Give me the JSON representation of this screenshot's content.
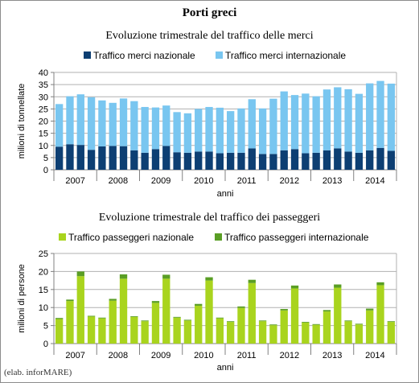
{
  "header": {
    "title": "Porti greci",
    "source": "(elab. inforMARE)"
  },
  "colors": {
    "merci_nazionale": "#0d3f73",
    "merci_internazionale": "#79c6f0",
    "passeggeri_nazionale": "#a9d41e",
    "passeggeri_internazionale": "#5a9e25",
    "grid": "#b0b0b0",
    "axis": "#808080"
  },
  "chart_data": [
    {
      "type": "bar",
      "stacked": true,
      "title": "Evoluzione trimestrale del traffico delle merci",
      "xlabel": "anni",
      "ylabel": "milioni di tonnellate",
      "ylim": [
        0,
        40
      ],
      "yticks": [
        0,
        5,
        10,
        15,
        20,
        25,
        30,
        35,
        40
      ],
      "grid": true,
      "legend": "top",
      "year_labels": [
        "2007",
        "2008",
        "2009",
        "2010",
        "2011",
        "2012",
        "2013",
        "2014"
      ],
      "categories": [
        "2007 Q1",
        "2007 Q2",
        "2007 Q3",
        "2007 Q4",
        "2008 Q1",
        "2008 Q2",
        "2008 Q3",
        "2008 Q4",
        "2009 Q1",
        "2009 Q2",
        "2009 Q3",
        "2009 Q4",
        "2010 Q1",
        "2010 Q2",
        "2010 Q3",
        "2010 Q4",
        "2011 Q1",
        "2011 Q2",
        "2011 Q3",
        "2011 Q4",
        "2012 Q1",
        "2012 Q2",
        "2012 Q3",
        "2012 Q4",
        "2013 Q1",
        "2013 Q2",
        "2013 Q3",
        "2013 Q4",
        "2014 Q1",
        "2014 Q2",
        "2014 Q3",
        "2014 Q4"
      ],
      "series": [
        {
          "name": "Traffico merci nazionale",
          "values": [
            9.5,
            10.5,
            10.2,
            8.2,
            9.6,
            9.8,
            9.7,
            8.0,
            7.0,
            8.5,
            9.8,
            7.2,
            7.0,
            7.5,
            7.5,
            6.8,
            7.0,
            7.0,
            8.8,
            6.5,
            6.5,
            8.0,
            8.5,
            6.8,
            7.0,
            8.0,
            8.8,
            7.5,
            7.0,
            8.0,
            9.0,
            7.8
          ]
        },
        {
          "name": "Traffico merci internazionale",
          "values": [
            17.5,
            19.7,
            20.8,
            21.6,
            18.9,
            17.7,
            19.6,
            20.2,
            18.8,
            17.1,
            16.6,
            16.5,
            16.2,
            17.5,
            18.3,
            18.7,
            17.1,
            18.2,
            20.2,
            18.7,
            22.7,
            24.2,
            22.2,
            24.5,
            23.2,
            25.0,
            25.1,
            25.6,
            24.2,
            27.5,
            27.5,
            27.6
          ]
        }
      ]
    },
    {
      "type": "bar",
      "stacked": true,
      "title": "Evoluzione trimestrale del traffico dei passeggeri",
      "xlabel": "anni",
      "ylabel": "milioni di persone",
      "ylim": [
        0,
        25
      ],
      "yticks": [
        0,
        5,
        10,
        15,
        20,
        25
      ],
      "grid": true,
      "legend": "top",
      "year_labels": [
        "2007",
        "2008",
        "2009",
        "2010",
        "2011",
        "2012",
        "2013",
        "2014"
      ],
      "categories": [
        "2007 Q1",
        "2007 Q2",
        "2007 Q3",
        "2007 Q4",
        "2008 Q1",
        "2008 Q2",
        "2008 Q3",
        "2008 Q4",
        "2009 Q1",
        "2009 Q2",
        "2009 Q3",
        "2009 Q4",
        "2010 Q1",
        "2010 Q2",
        "2010 Q3",
        "2010 Q4",
        "2011 Q1",
        "2011 Q2",
        "2011 Q3",
        "2011 Q4",
        "2012 Q1",
        "2012 Q2",
        "2012 Q3",
        "2012 Q4",
        "2013 Q1",
        "2013 Q2",
        "2013 Q3",
        "2013 Q4",
        "2014 Q1",
        "2014 Q2",
        "2014 Q3",
        "2014 Q4"
      ],
      "series": [
        {
          "name": "Traffico passeggeri nazionale",
          "values": [
            6.8,
            11.8,
            18.7,
            7.5,
            7.0,
            11.9,
            18.0,
            7.4,
            6.2,
            11.3,
            18.0,
            7.2,
            6.4,
            10.5,
            17.5,
            7.0,
            6.0,
            9.9,
            16.8,
            6.2,
            5.1,
            9.2,
            15.3,
            5.8,
            5.2,
            8.9,
            15.5,
            6.2,
            5.3,
            9.2,
            16.2,
            6.0
          ]
        },
        {
          "name": "Traffico passeggeri internazionale",
          "values": [
            0.3,
            0.4,
            1.3,
            0.2,
            0.2,
            0.5,
            1.2,
            0.2,
            0.2,
            0.5,
            1.1,
            0.2,
            0.2,
            0.5,
            0.9,
            0.2,
            0.2,
            0.4,
            0.9,
            0.2,
            0.2,
            0.4,
            0.8,
            0.2,
            0.2,
            0.4,
            0.9,
            0.2,
            0.2,
            0.5,
            0.8,
            0.2
          ]
        }
      ]
    }
  ]
}
